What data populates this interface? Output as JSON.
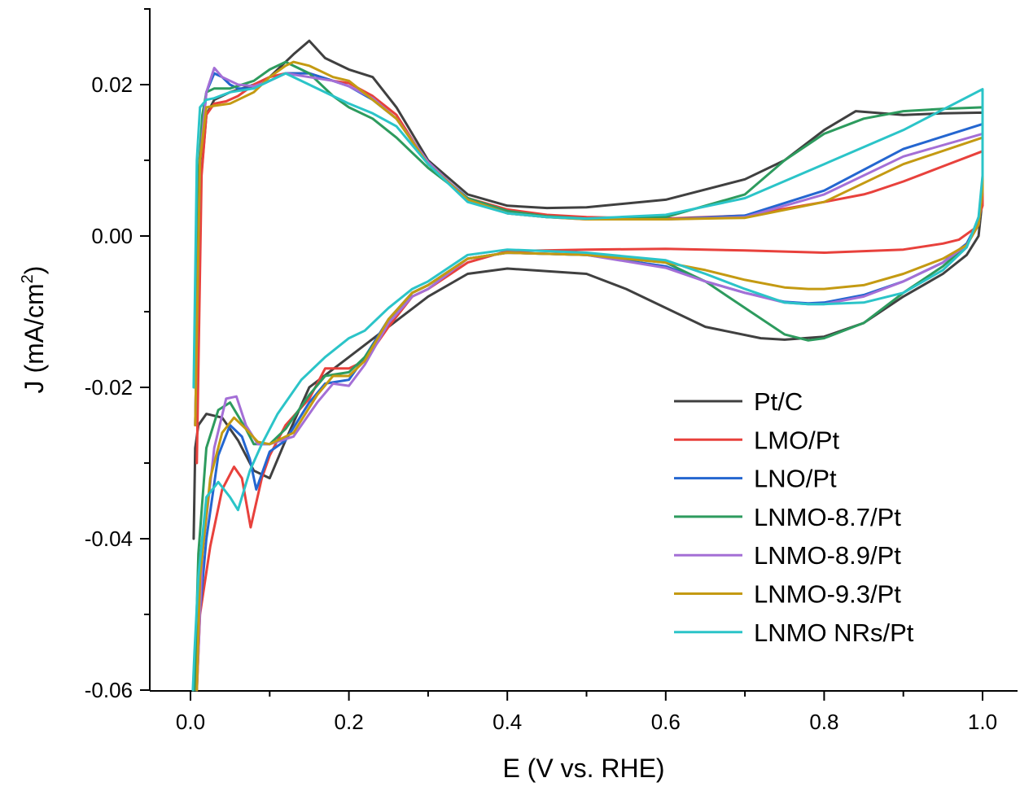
{
  "chart_data": {
    "type": "line",
    "title": "",
    "xlabel": "E (V vs. RHE)",
    "ylabel_main": "J (mA/cm",
    "ylabel_sup": "2",
    "ylabel_end": ")",
    "xlim": [
      -0.05,
      1.05
    ],
    "ylim": [
      -0.06,
      0.03
    ],
    "x_ticks": [
      {
        "value": 0.0,
        "label": "0.0"
      },
      {
        "value": 0.2,
        "label": "0.2"
      },
      {
        "value": 0.4,
        "label": "0.4"
      },
      {
        "value": 0.6,
        "label": "0.6"
      },
      {
        "value": 0.8,
        "label": "0.8"
      },
      {
        "value": 1.0,
        "label": "1.0"
      }
    ],
    "y_ticks": [
      {
        "value": 0.02,
        "label": "0.02"
      },
      {
        "value": 0.0,
        "label": "0.00"
      },
      {
        "value": -0.02,
        "label": "-0.02"
      },
      {
        "value": -0.04,
        "label": "-0.04"
      },
      {
        "value": -0.06,
        "label": "-0.06"
      }
    ],
    "grid": false,
    "legend_position": "bottom-right",
    "series": [
      {
        "name": "Pt/C",
        "color": "#404040",
        "x": [
          0.005,
          0.012,
          0.02,
          0.03,
          0.05,
          0.08,
          0.1,
          0.13,
          0.15,
          0.17,
          0.2,
          0.23,
          0.26,
          0.3,
          0.35,
          0.4,
          0.45,
          0.5,
          0.6,
          0.7,
          0.75,
          0.8,
          0.84,
          0.9,
          0.95,
          1.0,
          1.0,
          0.995,
          0.98,
          0.95,
          0.9,
          0.85,
          0.8,
          0.75,
          0.72,
          0.65,
          0.6,
          0.55,
          0.5,
          0.4,
          0.35,
          0.3,
          0.25,
          0.2,
          0.15,
          0.12,
          0.1,
          0.08,
          0.06,
          0.04,
          0.02,
          0.01,
          0.006,
          0.004
        ],
        "y": [
          -0.02,
          0.006,
          0.016,
          0.018,
          0.019,
          0.02,
          0.021,
          0.024,
          0.0258,
          0.0235,
          0.022,
          0.021,
          0.017,
          0.01,
          0.0055,
          0.004,
          0.0037,
          0.0038,
          0.0048,
          0.0075,
          0.01,
          0.014,
          0.0165,
          0.016,
          0.0162,
          0.0163,
          0.005,
          0.0,
          -0.0025,
          -0.005,
          -0.008,
          -0.0115,
          -0.0133,
          -0.0137,
          -0.0135,
          -0.012,
          -0.0095,
          -0.007,
          -0.005,
          -0.0043,
          -0.005,
          -0.008,
          -0.012,
          -0.016,
          -0.02,
          -0.027,
          -0.032,
          -0.031,
          -0.027,
          -0.024,
          -0.0235,
          -0.025,
          -0.028,
          -0.04
        ]
      },
      {
        "name": "LMO/Pt",
        "color": "#e8413c",
        "x": [
          0.008,
          0.014,
          0.02,
          0.03,
          0.045,
          0.06,
          0.08,
          0.1,
          0.12,
          0.15,
          0.18,
          0.2,
          0.23,
          0.26,
          0.3,
          0.35,
          0.4,
          0.45,
          0.5,
          0.6,
          0.7,
          0.8,
          0.85,
          0.86,
          0.9,
          0.95,
          1.0,
          1.0,
          0.99,
          0.97,
          0.95,
          0.9,
          0.8,
          0.7,
          0.6,
          0.5,
          0.4,
          0.35,
          0.3,
          0.28,
          0.25,
          0.22,
          0.2,
          0.17,
          0.15,
          0.12,
          0.1,
          0.09,
          0.076,
          0.065,
          0.055,
          0.04,
          0.025,
          0.012,
          0.008
        ],
        "y": [
          -0.03,
          0.008,
          0.016,
          0.0175,
          0.0178,
          0.0185,
          0.02,
          0.021,
          0.0215,
          0.0215,
          0.0205,
          0.0202,
          0.0185,
          0.016,
          0.0095,
          0.005,
          0.0035,
          0.0028,
          0.0025,
          0.0023,
          0.0027,
          0.0045,
          0.0055,
          0.0058,
          0.0072,
          0.0092,
          0.0112,
          0.004,
          0.001,
          -0.0005,
          -0.001,
          -0.0018,
          -0.0022,
          -0.0019,
          -0.0017,
          -0.0018,
          -0.002,
          -0.0035,
          -0.007,
          -0.008,
          -0.012,
          -0.0165,
          -0.0175,
          -0.0175,
          -0.0215,
          -0.025,
          -0.029,
          -0.032,
          -0.0385,
          -0.032,
          -0.0305,
          -0.0335,
          -0.041,
          -0.05,
          -0.06
        ]
      },
      {
        "name": "LNO/Pt",
        "color": "#2466d0",
        "x": [
          0.006,
          0.012,
          0.02,
          0.03,
          0.04,
          0.05,
          0.06,
          0.08,
          0.1,
          0.12,
          0.15,
          0.18,
          0.2,
          0.23,
          0.26,
          0.3,
          0.35,
          0.4,
          0.45,
          0.5,
          0.6,
          0.7,
          0.8,
          0.9,
          1.0,
          1.0,
          0.995,
          0.98,
          0.95,
          0.9,
          0.85,
          0.8,
          0.78,
          0.75,
          0.7,
          0.65,
          0.6,
          0.5,
          0.4,
          0.35,
          0.3,
          0.28,
          0.25,
          0.22,
          0.2,
          0.17,
          0.15,
          0.12,
          0.1,
          0.083,
          0.075,
          0.065,
          0.05,
          0.035,
          0.02,
          0.01,
          0.007
        ],
        "y": [
          -0.025,
          0.01,
          0.019,
          0.0215,
          0.021,
          0.02,
          0.0195,
          0.0195,
          0.0205,
          0.0215,
          0.0215,
          0.0205,
          0.0198,
          0.018,
          0.0155,
          0.0095,
          0.005,
          0.003,
          0.0025,
          0.0023,
          0.0022,
          0.0027,
          0.006,
          0.0115,
          0.0148,
          0.007,
          0.002,
          -0.001,
          -0.0035,
          -0.006,
          -0.0078,
          -0.0088,
          -0.0089,
          -0.0087,
          -0.0075,
          -0.006,
          -0.004,
          -0.0025,
          -0.0022,
          -0.003,
          -0.0065,
          -0.0075,
          -0.011,
          -0.016,
          -0.019,
          -0.0195,
          -0.022,
          -0.027,
          -0.0285,
          -0.0335,
          -0.0295,
          -0.0265,
          -0.025,
          -0.029,
          -0.04,
          -0.052,
          -0.06
        ]
      },
      {
        "name": "LNMO-8.7/Pt",
        "color": "#2d9b5e",
        "x": [
          0.005,
          0.01,
          0.015,
          0.02,
          0.03,
          0.05,
          0.08,
          0.1,
          0.12,
          0.15,
          0.18,
          0.2,
          0.23,
          0.26,
          0.3,
          0.35,
          0.4,
          0.45,
          0.5,
          0.6,
          0.7,
          0.75,
          0.8,
          0.85,
          0.9,
          0.95,
          1.0,
          1.0,
          0.995,
          0.98,
          0.95,
          0.9,
          0.85,
          0.8,
          0.78,
          0.75,
          0.7,
          0.65,
          0.6,
          0.5,
          0.4,
          0.35,
          0.3,
          0.28,
          0.25,
          0.22,
          0.2,
          0.17,
          0.15,
          0.12,
          0.1,
          0.08,
          0.07,
          0.05,
          0.035,
          0.02,
          0.01,
          0.005
        ],
        "y": [
          -0.02,
          0.008,
          0.016,
          0.019,
          0.0195,
          0.0195,
          0.0205,
          0.022,
          0.023,
          0.0215,
          0.0185,
          0.017,
          0.0155,
          0.013,
          0.009,
          0.005,
          0.0033,
          0.0026,
          0.0023,
          0.0025,
          0.0055,
          0.01,
          0.0135,
          0.0155,
          0.0165,
          0.0168,
          0.017,
          0.006,
          0.0015,
          -0.0012,
          -0.004,
          -0.0075,
          -0.0115,
          -0.0135,
          -0.0138,
          -0.013,
          -0.0095,
          -0.006,
          -0.0035,
          -0.0025,
          -0.0022,
          -0.003,
          -0.0065,
          -0.0075,
          -0.0115,
          -0.016,
          -0.018,
          -0.0185,
          -0.021,
          -0.0255,
          -0.0275,
          -0.0275,
          -0.0255,
          -0.022,
          -0.023,
          -0.028,
          -0.042,
          -0.06
        ]
      },
      {
        "name": "LNMO-8.9/Pt",
        "color": "#a46fd6",
        "x": [
          0.006,
          0.012,
          0.02,
          0.03,
          0.04,
          0.05,
          0.06,
          0.08,
          0.1,
          0.12,
          0.15,
          0.18,
          0.2,
          0.23,
          0.26,
          0.3,
          0.35,
          0.4,
          0.45,
          0.5,
          0.6,
          0.7,
          0.8,
          0.9,
          1.0,
          1.0,
          0.995,
          0.98,
          0.95,
          0.9,
          0.85,
          0.8,
          0.78,
          0.75,
          0.7,
          0.65,
          0.6,
          0.5,
          0.4,
          0.35,
          0.3,
          0.28,
          0.25,
          0.22,
          0.2,
          0.18,
          0.16,
          0.13,
          0.1,
          0.085,
          0.07,
          0.058,
          0.045,
          0.03,
          0.015,
          0.008
        ],
        "y": [
          -0.025,
          0.01,
          0.019,
          0.0222,
          0.021,
          0.0205,
          0.02,
          0.0198,
          0.0205,
          0.0215,
          0.021,
          0.0205,
          0.0198,
          0.0182,
          0.0155,
          0.0098,
          0.0048,
          0.003,
          0.0025,
          0.0022,
          0.0022,
          0.0025,
          0.0055,
          0.0105,
          0.0135,
          0.006,
          0.0015,
          -0.0012,
          -0.0035,
          -0.006,
          -0.008,
          -0.009,
          -0.009,
          -0.0088,
          -0.0075,
          -0.006,
          -0.0042,
          -0.0025,
          -0.0022,
          -0.003,
          -0.007,
          -0.008,
          -0.0115,
          -0.017,
          -0.0198,
          -0.0195,
          -0.022,
          -0.0265,
          -0.0275,
          -0.0275,
          -0.025,
          -0.0212,
          -0.0215,
          -0.028,
          -0.042,
          -0.06
        ]
      },
      {
        "name": "LNMO-9.3/Pt",
        "color": "#c49a12",
        "x": [
          0.006,
          0.012,
          0.02,
          0.03,
          0.05,
          0.08,
          0.1,
          0.12,
          0.13,
          0.15,
          0.18,
          0.2,
          0.23,
          0.26,
          0.3,
          0.35,
          0.4,
          0.45,
          0.5,
          0.6,
          0.7,
          0.8,
          0.9,
          1.0,
          1.0,
          0.995,
          0.98,
          0.95,
          0.9,
          0.85,
          0.8,
          0.78,
          0.75,
          0.7,
          0.65,
          0.6,
          0.5,
          0.4,
          0.35,
          0.3,
          0.28,
          0.25,
          0.22,
          0.2,
          0.18,
          0.16,
          0.13,
          0.1,
          0.085,
          0.07,
          0.055,
          0.04,
          0.025,
          0.012,
          0.008
        ],
        "y": [
          -0.025,
          0.01,
          0.017,
          0.0172,
          0.0175,
          0.019,
          0.021,
          0.0225,
          0.023,
          0.0225,
          0.021,
          0.0205,
          0.018,
          0.0155,
          0.0095,
          0.0048,
          0.003,
          0.0025,
          0.0022,
          0.0022,
          0.0024,
          0.0045,
          0.0095,
          0.013,
          0.006,
          0.0015,
          -0.0012,
          -0.003,
          -0.005,
          -0.0065,
          -0.007,
          -0.007,
          -0.0068,
          -0.0058,
          -0.0045,
          -0.0035,
          -0.0025,
          -0.0022,
          -0.003,
          -0.0065,
          -0.0075,
          -0.011,
          -0.0165,
          -0.0185,
          -0.0185,
          -0.021,
          -0.026,
          -0.0275,
          -0.0272,
          -0.0255,
          -0.024,
          -0.026,
          -0.032,
          -0.045,
          -0.06
        ]
      },
      {
        "name": "LNMO NRs/Pt",
        "color": "#2bc4c8",
        "x": [
          0.004,
          0.008,
          0.012,
          0.02,
          0.03,
          0.05,
          0.08,
          0.1,
          0.12,
          0.15,
          0.18,
          0.2,
          0.23,
          0.26,
          0.3,
          0.35,
          0.4,
          0.45,
          0.5,
          0.6,
          0.7,
          0.8,
          0.9,
          1.0,
          1.0,
          0.995,
          0.98,
          0.95,
          0.9,
          0.85,
          0.8,
          0.78,
          0.75,
          0.7,
          0.65,
          0.6,
          0.5,
          0.4,
          0.35,
          0.3,
          0.28,
          0.25,
          0.22,
          0.2,
          0.17,
          0.14,
          0.11,
          0.09,
          0.075,
          0.06,
          0.05,
          0.035,
          0.02,
          0.01,
          0.005,
          0.003
        ],
        "y": [
          -0.02,
          0.01,
          0.017,
          0.018,
          0.0182,
          0.019,
          0.0195,
          0.0205,
          0.0215,
          0.02,
          0.0185,
          0.0175,
          0.0162,
          0.0145,
          0.0095,
          0.0045,
          0.003,
          0.0025,
          0.0023,
          0.0028,
          0.005,
          0.0095,
          0.014,
          0.0194,
          0.008,
          0.0025,
          -0.0015,
          -0.0045,
          -0.0075,
          -0.0088,
          -0.009,
          -0.009,
          -0.0088,
          -0.007,
          -0.005,
          -0.0032,
          -0.0022,
          -0.0018,
          -0.0025,
          -0.006,
          -0.007,
          -0.0095,
          -0.0125,
          -0.0135,
          -0.016,
          -0.019,
          -0.0235,
          -0.0275,
          -0.031,
          -0.0362,
          -0.0345,
          -0.0325,
          -0.0345,
          -0.045,
          -0.055,
          -0.06
        ]
      }
    ]
  }
}
